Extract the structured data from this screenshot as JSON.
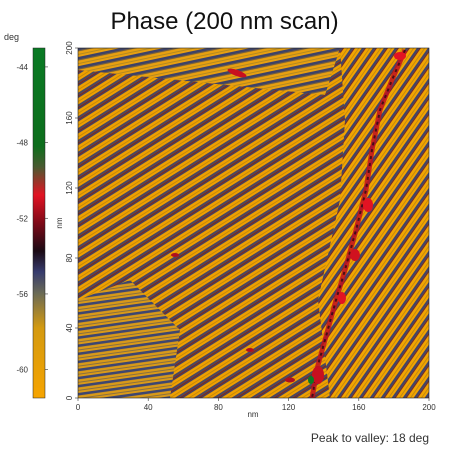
{
  "title": "Phase (200 nm scan)",
  "colorbar": {
    "unit": "deg",
    "ticks": [
      "-44",
      "-48",
      "-52",
      "-56",
      "-60"
    ],
    "tick_values": [
      -44,
      -48,
      -52,
      -56,
      -60
    ],
    "range": [
      -61.5,
      -43
    ],
    "colors": [
      "#f6a400",
      "#7a6a4a",
      "#3a3d6b",
      "#2a0e1a",
      "#9b0b1b",
      "#e21323",
      "#0e6e1a",
      "#0a7a24"
    ]
  },
  "image": {
    "x_label": "nm",
    "y_label": "nm",
    "x_ticks": [
      "0",
      "40",
      "80",
      "120",
      "160",
      "200"
    ],
    "y_ticks": [
      "0",
      "40",
      "80",
      "120",
      "160",
      "200"
    ],
    "x_range": [
      0,
      200
    ],
    "y_range": [
      0,
      200
    ]
  },
  "footer": "Peak to valley: 18 deg"
}
